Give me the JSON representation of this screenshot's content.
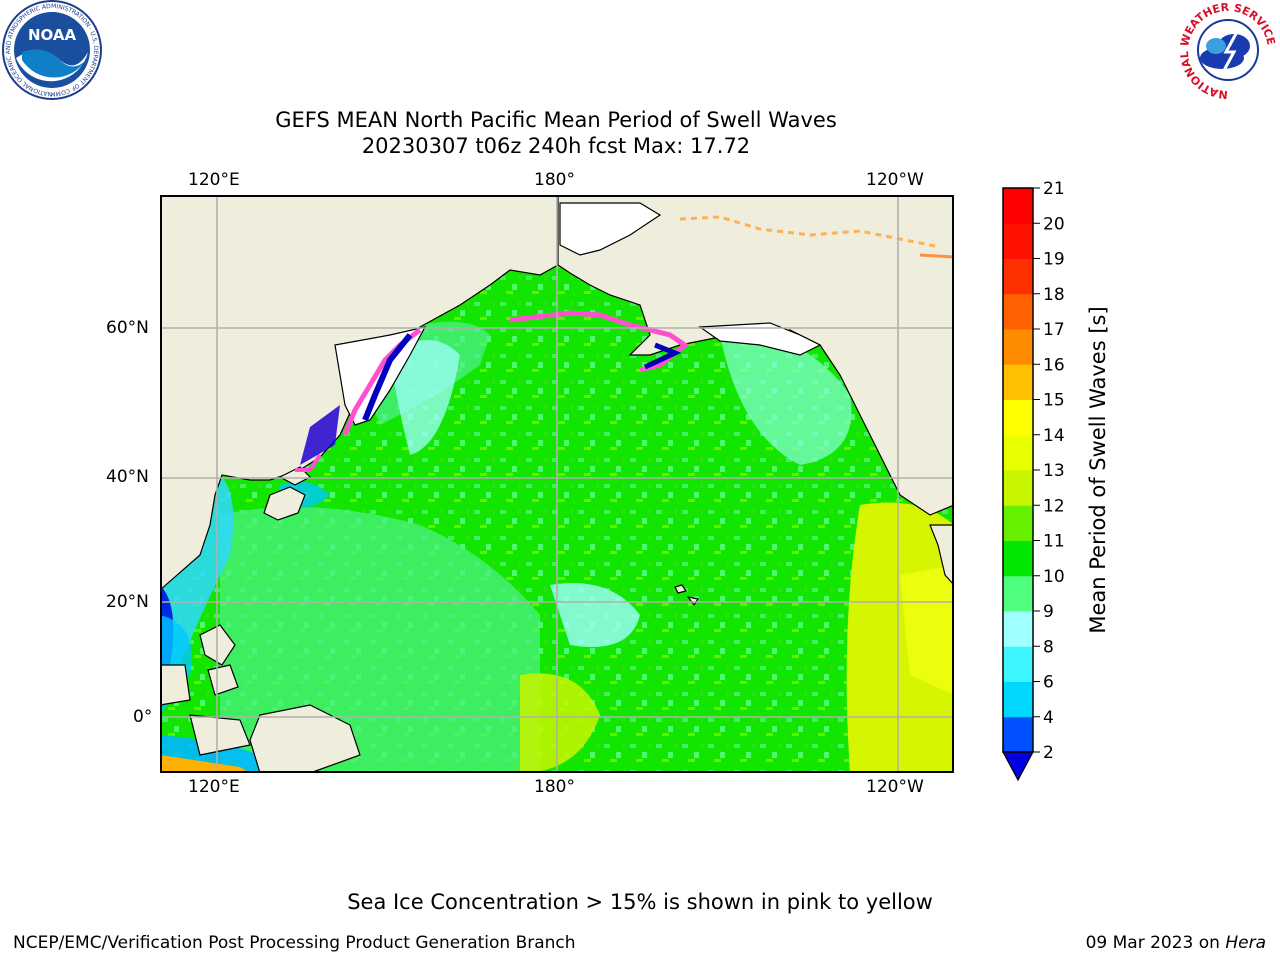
{
  "title_line1": "GEFS MEAN North Pacific Mean Period of Swell Waves",
  "title_line2": "20230307 t06z 240h fcst   Max: 17.72",
  "map": {
    "lon_labels_top": [
      "120°E",
      "180°",
      "120°W"
    ],
    "lon_labels_bottom": [
      "120°E",
      "180°",
      "120°W"
    ],
    "lat_labels": [
      "60°N",
      "40°N",
      "20°N",
      "0°"
    ],
    "land_color": "#efeedd",
    "ocean_color": "#00ee00",
    "grid": true
  },
  "colorbar": {
    "label": "Mean Period of Swell Waves [s]",
    "ticks": [
      "2",
      "4",
      "6",
      "8",
      "9",
      "10",
      "11",
      "12",
      "13",
      "14",
      "15",
      "16",
      "17",
      "18",
      "19",
      "20",
      "21"
    ],
    "colors": [
      "#0050ff",
      "#00d8ff",
      "#3cf5ff",
      "#a0ffff",
      "#50ff80",
      "#00e600",
      "#66f000",
      "#c8f500",
      "#e8ff00",
      "#ffff00",
      "#ffc000",
      "#ff8c00",
      "#ff6000",
      "#ff3000",
      "#ff1000",
      "#ff0000"
    ],
    "extend_color": "#0000e0"
  },
  "note": "Sea Ice Concentration > 15% is shown in pink to yellow",
  "footer_left": "NCEP/EMC/Verification Post Processing Product Generation Branch",
  "footer_right_date": "09 Mar 2023 on ",
  "footer_right_host": "Hera",
  "logos": {
    "noaa_text": "NOAA",
    "noaa_ring": "NATIONAL OCEANIC AND ATMOSPHERIC ADMINISTRATION · U.S. DEPARTMENT OF COMMERCE",
    "nws_ring": "NATIONAL WEATHER SERVICE"
  }
}
